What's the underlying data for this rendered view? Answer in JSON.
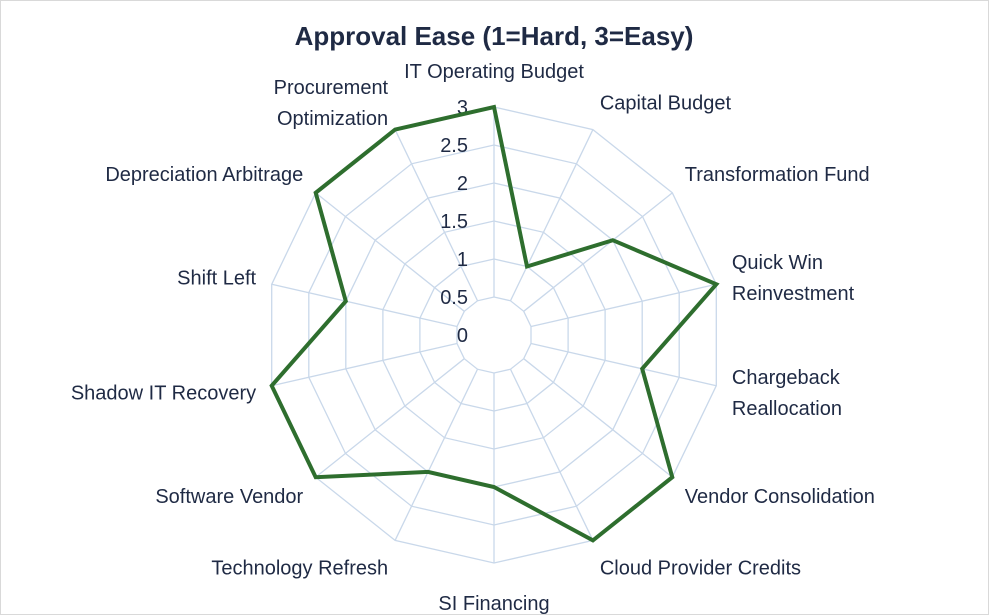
{
  "chart_data": {
    "type": "radar",
    "title": "Approval Ease (1=Hard, 3=Easy)",
    "categories": [
      "IT Operating Budget",
      "Capital Budget",
      "Transformation Fund",
      "Quick Win Reinvestment",
      "Chargeback Reallocation",
      "Vendor Consolidation",
      "Cloud Provider Credits",
      "SI Financing",
      "Technology Refresh",
      "Software Vendor",
      "Shadow IT Recovery",
      "Shift Left",
      "Depreciation Arbitrage",
      "Procurement Optimization"
    ],
    "category_display": [
      [
        "IT Operating Budget"
      ],
      [
        "Capital Budget"
      ],
      [
        "Transformation Fund"
      ],
      [
        "Quick Win",
        "Reinvestment"
      ],
      [
        "Chargeback",
        "Reallocation"
      ],
      [
        "Vendor Consolidation"
      ],
      [
        "Cloud Provider Credits"
      ],
      [
        "SI Financing"
      ],
      [
        "Technology Refresh"
      ],
      [
        "Software Vendor"
      ],
      [
        "Shadow IT Recovery"
      ],
      [
        "Shift Left"
      ],
      [
        "Depreciation Arbitrage"
      ],
      [
        "Procurement",
        "Optimization"
      ]
    ],
    "series": [
      {
        "values": [
          3,
          1,
          2,
          3,
          2,
          3,
          3,
          2,
          2,
          3,
          3,
          2,
          3,
          3
        ],
        "color": "#2e6e2e"
      }
    ],
    "rlim": [
      0,
      3
    ],
    "ticks": [
      "0",
      "0.5",
      "1",
      "1.5",
      "2",
      "2.5",
      "3"
    ],
    "grid": true,
    "grid_color": "#c9d8ea",
    "text_color": "#1f2a44"
  }
}
